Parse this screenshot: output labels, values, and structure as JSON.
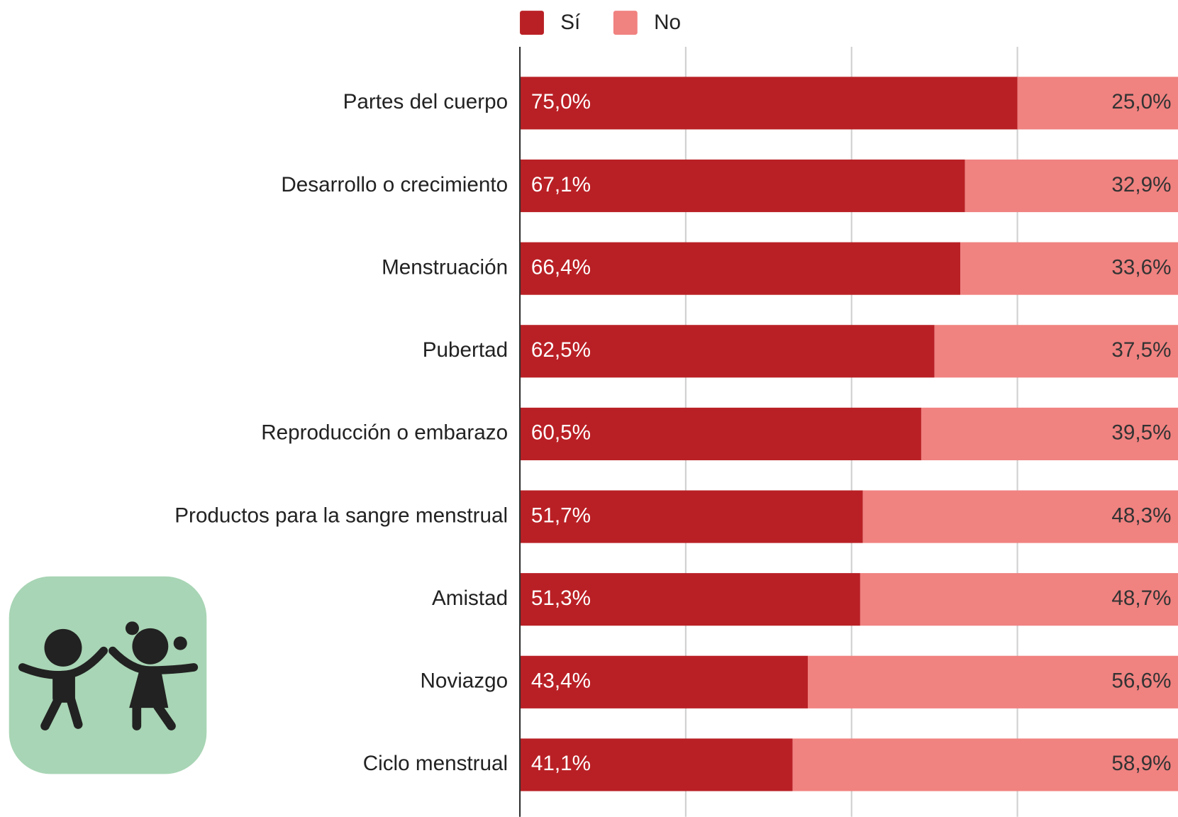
{
  "chart_data": {
    "type": "stacked_barh",
    "categories": [
      "Partes del cuerpo",
      "Desarrollo o crecimiento",
      "Menstruación",
      "Pubertad",
      "Reproducción o embarazo",
      "Productos para la sangre menstrual",
      "Amistad",
      "Noviazgo",
      "Ciclo menstrual"
    ],
    "series": [
      {
        "name": "Sí",
        "color": "#b92025",
        "values": [
          75.0,
          67.1,
          66.4,
          62.5,
          60.5,
          51.7,
          51.3,
          43.4,
          41.1
        ],
        "value_labels": [
          "75,0%",
          "67,1%",
          "66,4%",
          "62,5%",
          "60,5%",
          "51,7%",
          "51,3%",
          "43,4%",
          "41,1%"
        ]
      },
      {
        "name": "No",
        "color": "#f08280",
        "values": [
          25.0,
          32.9,
          33.6,
          37.5,
          39.5,
          48.3,
          48.7,
          56.6,
          58.9
        ],
        "value_labels": [
          "25,0%",
          "32,9%",
          "33,6%",
          "37,5%",
          "39,5%",
          "48,3%",
          "48,7%",
          "56,6%",
          "58,9%"
        ]
      }
    ],
    "xlim": [
      0,
      100
    ],
    "xticks": [
      0,
      25,
      50,
      75,
      100
    ],
    "grid": true,
    "legend": "top"
  }
}
